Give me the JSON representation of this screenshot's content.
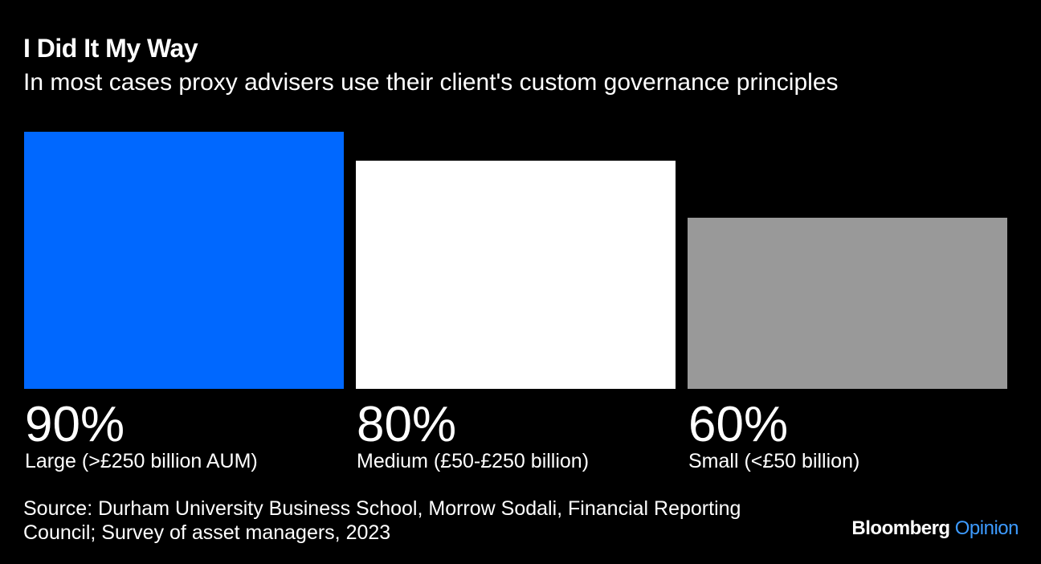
{
  "header": {
    "title": "I Did It My Way",
    "subtitle": "In most cases proxy advisers use their client's custom governance principles"
  },
  "chart_data": {
    "type": "bar",
    "categories": [
      "Large (>£250 billion AUM)",
      "Medium (£50-£250 billion)",
      "Small (<£50 billion)"
    ],
    "values": [
      90,
      80,
      60
    ],
    "value_labels": [
      "90%",
      "80%",
      "60%"
    ],
    "colors": [
      "#0068ff",
      "#ffffff",
      "#999999"
    ],
    "ylim": [
      0,
      90
    ],
    "grid": false,
    "legend": "none"
  },
  "footer": {
    "source": "Source: Durham University Business School, Morrow Sodali, Financial Reporting Council; Survey of asset managers, 2023",
    "brand_main": "Bloomberg",
    "brand_sub": "Opinion"
  }
}
